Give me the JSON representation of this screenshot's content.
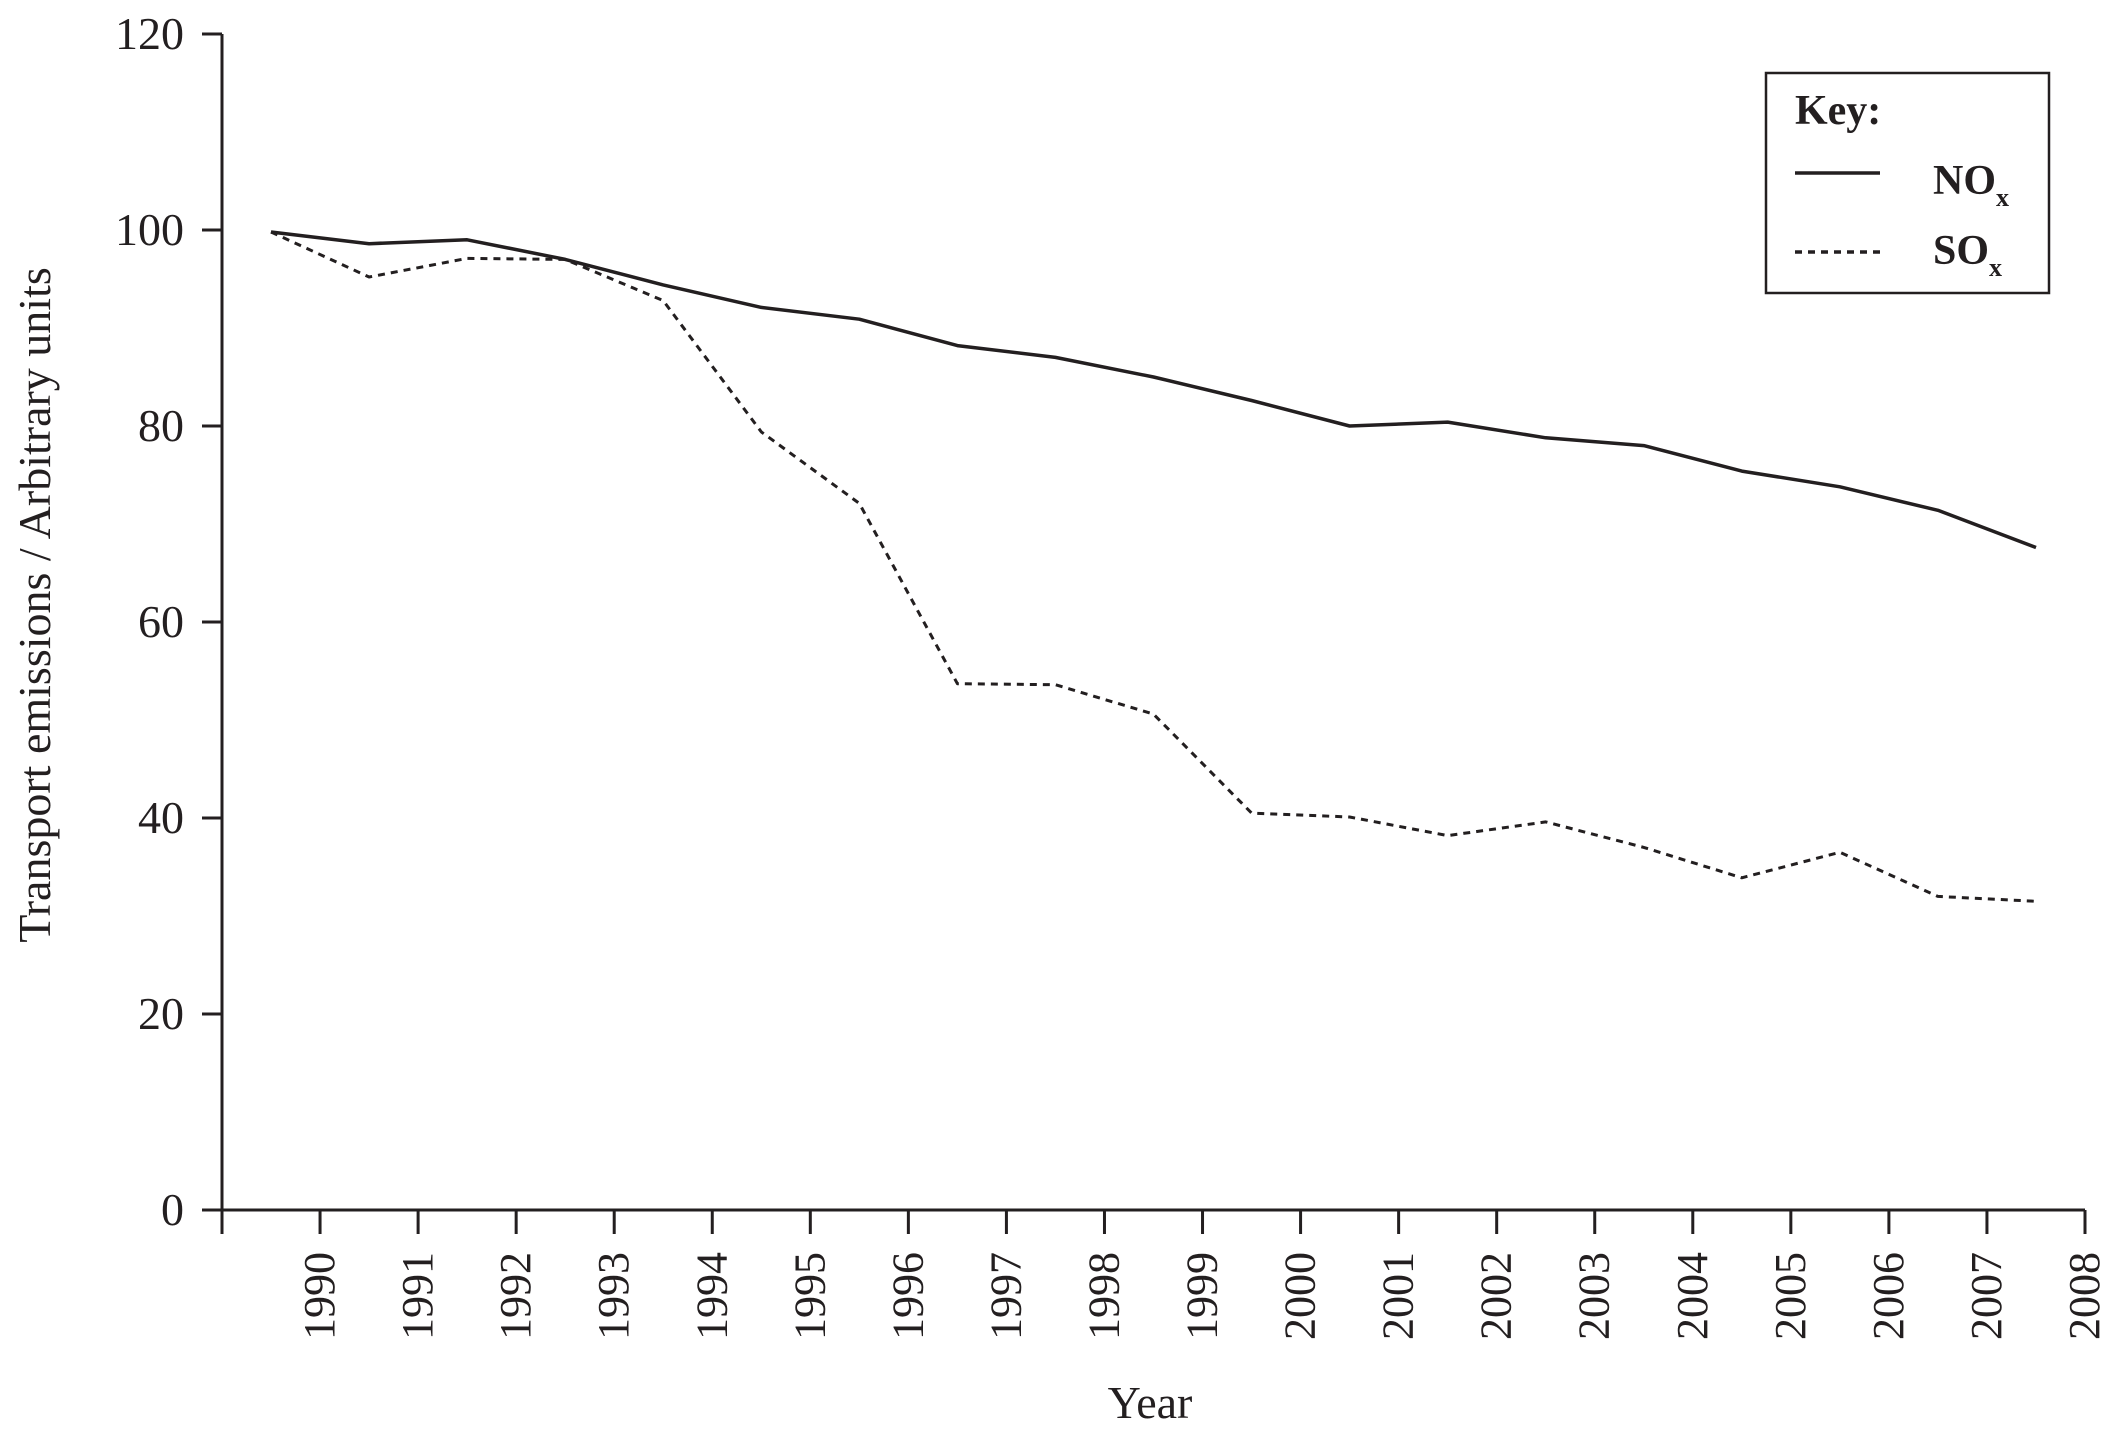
{
  "chart_data": {
    "type": "line",
    "xlabel": "Year",
    "ylabel": "Transport emissions / Arbitrary units",
    "ylim": [
      0,
      120
    ],
    "yticks": [
      0,
      20,
      40,
      60,
      80,
      100,
      120
    ],
    "xlim": [
      1989,
      2008
    ],
    "xticks": [
      "1990",
      "1991",
      "1992",
      "1993",
      "1994",
      "1995",
      "1996",
      "1997",
      "1998",
      "1999",
      "2000",
      "2001",
      "2002",
      "2003",
      "2004",
      "2005",
      "2006",
      "2007",
      "2008"
    ],
    "x": [
      1989.5,
      1990.5,
      1991.5,
      1992.5,
      1993.5,
      1994.5,
      1995.5,
      1996.5,
      1997.5,
      1998.5,
      1999.5,
      2000.5,
      2001.5,
      2002.5,
      2003.5,
      2004.5,
      2005.5,
      2006.5,
      2007.5
    ],
    "series": [
      {
        "name": "NO",
        "name_subscript": "x",
        "style": "solid",
        "values": [
          99.8,
          98.6,
          99.0,
          97.0,
          94.4,
          92.1,
          90.9,
          88.2,
          87.0,
          85.0,
          82.6,
          80.0,
          80.4,
          78.8,
          78.0,
          75.4,
          73.8,
          71.4,
          67.6
        ]
      },
      {
        "name": "SO",
        "name_subscript": "x",
        "style": "dashed",
        "values": [
          99.8,
          95.2,
          97.1,
          97.0,
          92.8,
          79.4,
          72.1,
          53.7,
          53.6,
          50.6,
          40.5,
          40.1,
          38.2,
          39.6,
          37.0,
          33.9,
          36.5,
          32.0,
          31.5
        ]
      }
    ],
    "legend": {
      "title": "Key:",
      "placement": "top-right"
    },
    "grid": false
  }
}
